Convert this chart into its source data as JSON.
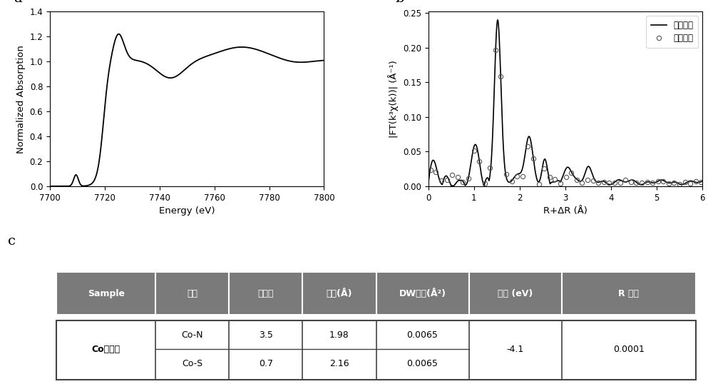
{
  "panel_a_label": "a",
  "panel_b_label": "b",
  "panel_c_label": "c",
  "xanes_xlabel": "Energy (eV)",
  "xanes_ylabel": "Normalized Absorption",
  "xanes_xlim": [
    7700,
    7800
  ],
  "xanes_ylim": [
    0.0,
    1.4
  ],
  "xanes_xticks": [
    7700,
    7720,
    7740,
    7760,
    7780,
    7800
  ],
  "xanes_yticks": [
    0.0,
    0.2,
    0.4,
    0.6,
    0.8,
    1.0,
    1.2,
    1.4
  ],
  "exafs_xlabel": "R+ΔR (Å)",
  "exafs_ylabel": "|FT(k³χ(k))| (Å⁻¹)",
  "exafs_xlim": [
    0,
    6
  ],
  "exafs_xticks": [
    0,
    1,
    2,
    3,
    4,
    5,
    6
  ],
  "legend_exp": "实验数据",
  "legend_sim": "模拟数据",
  "table_header": [
    "Sample",
    "配位",
    "配位数",
    "键长(Å)",
    "DW因子(Å²)",
    "能移 (eV)",
    "R 因子"
  ],
  "table_header_bg": "#7a7a7a",
  "table_header_color": "#ffffff",
  "table_row1_sample": "Co单原子",
  "table_row1_coord1": "Co-N",
  "table_row1_cn1": "3.5",
  "table_row1_bl1": "1.98",
  "table_row1_dw1": "0.0065",
  "table_row1_coord2": "Co-S",
  "table_row1_cn2": "0.7",
  "table_row1_bl2": "2.16",
  "table_row1_dw2": "0.0065",
  "table_row1_e0": "-4.1",
  "table_row1_r": "0.0001"
}
